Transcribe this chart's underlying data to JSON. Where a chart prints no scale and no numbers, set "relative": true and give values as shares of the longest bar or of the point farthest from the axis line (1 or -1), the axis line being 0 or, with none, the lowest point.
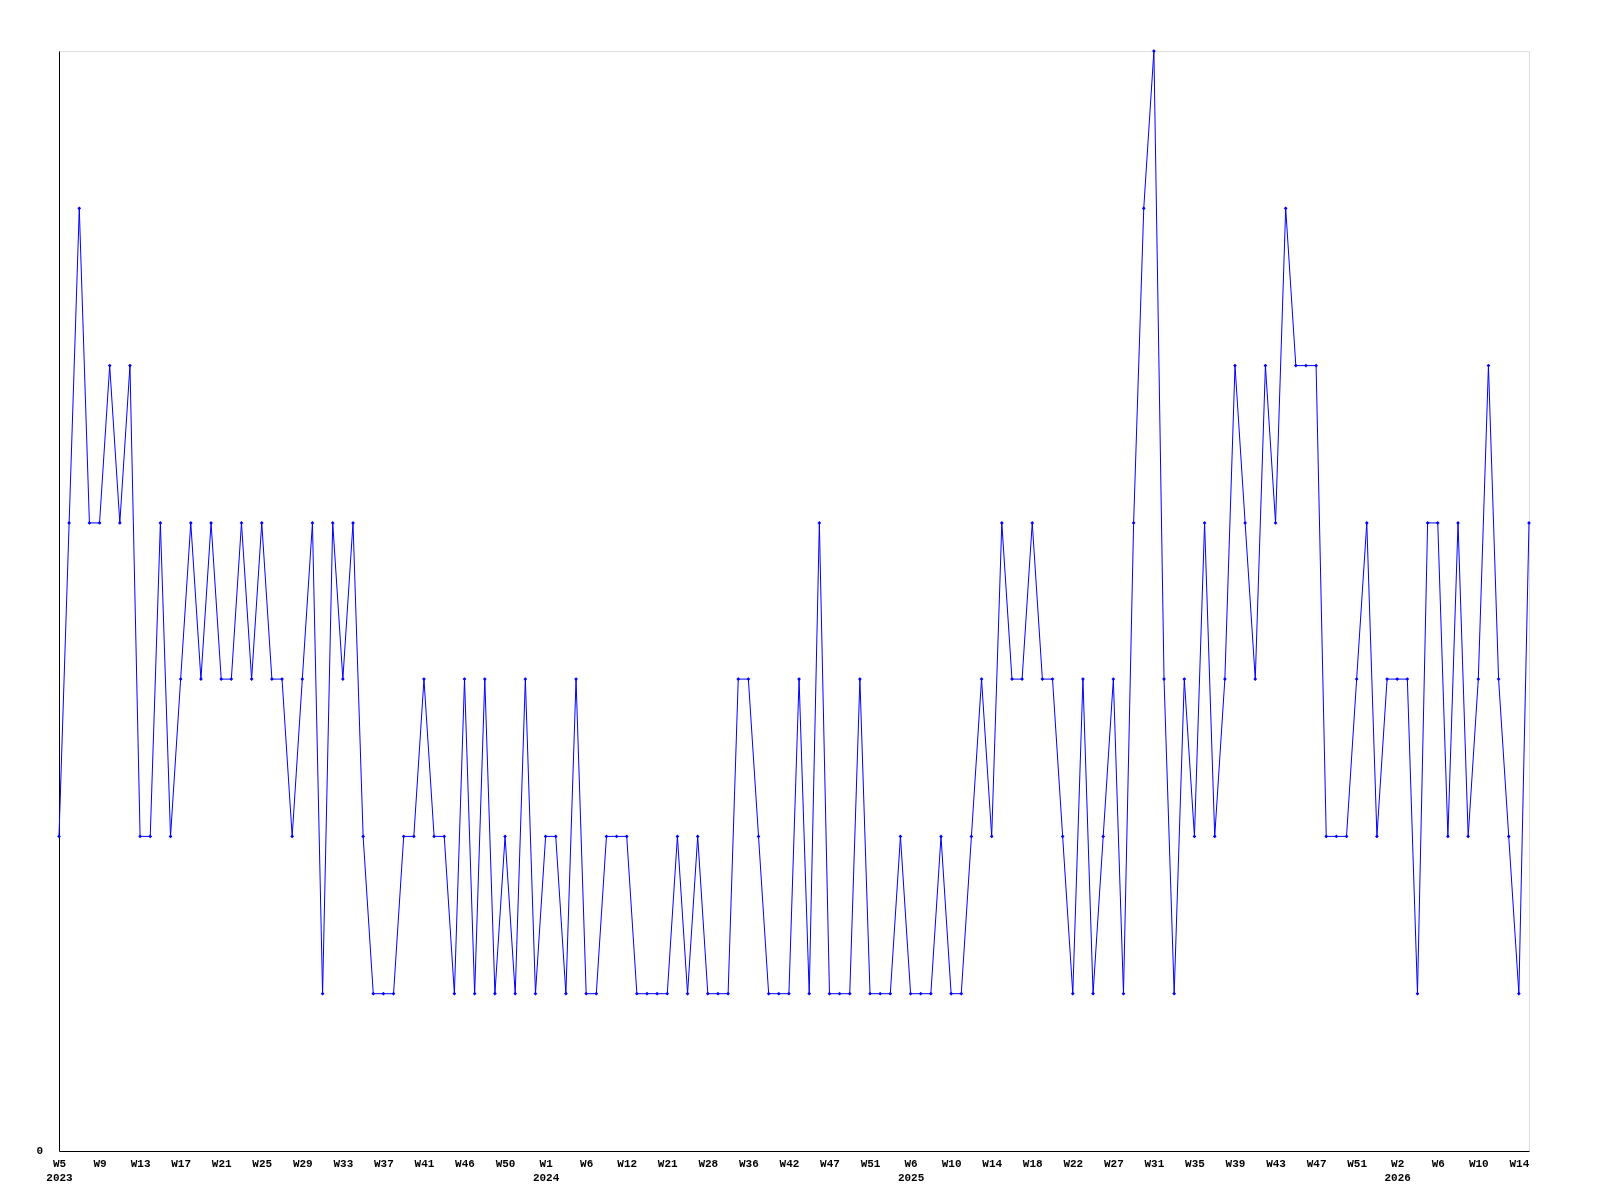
{
  "chart_data": {
    "type": "line",
    "relative": true,
    "marker": "diamond",
    "line_style": "solid",
    "grid": false,
    "categories": [
      "W5\n2023",
      null,
      null,
      null,
      "W9",
      null,
      null,
      null,
      "W13",
      null,
      null,
      null,
      "W17",
      null,
      null,
      null,
      "W21",
      null,
      null,
      null,
      "W25",
      null,
      null,
      null,
      "W29",
      null,
      null,
      null,
      "W33",
      null,
      null,
      null,
      "W37",
      null,
      null,
      null,
      "W41",
      null,
      null,
      null,
      "W46",
      null,
      null,
      null,
      "W50",
      null,
      null,
      null,
      "W1\n2024",
      null,
      null,
      null,
      "W6",
      null,
      null,
      null,
      "W12",
      null,
      null,
      null,
      "W21",
      null,
      null,
      null,
      "W28",
      null,
      null,
      null,
      "W36",
      null,
      null,
      null,
      "W42",
      null,
      null,
      null,
      "W47",
      null,
      null,
      null,
      "W51",
      null,
      null,
      null,
      "W6\n2025",
      null,
      null,
      null,
      "W10",
      null,
      null,
      null,
      "W14",
      null,
      null,
      null,
      "W18",
      null,
      null,
      null,
      "W22",
      null,
      null,
      null,
      "W27",
      null,
      null,
      null,
      "W31",
      null,
      null,
      null,
      "W35",
      null,
      null,
      null,
      "W39",
      null,
      null,
      null,
      "W43",
      null,
      null,
      null,
      "W47",
      null,
      null,
      null,
      "W51",
      null,
      null,
      null,
      "W2\n2026",
      null,
      null,
      null,
      "W6",
      null,
      null,
      null,
      "W10",
      null,
      null,
      null,
      "W14",
      null
    ],
    "series": [
      {
        "color": "#0000ff",
        "values": [
          0.286,
          0.571,
          0.857,
          0.571,
          0.571,
          0.714,
          0.571,
          0.714,
          0.286,
          0.286,
          0.571,
          0.286,
          0.429,
          0.571,
          0.429,
          0.571,
          0.429,
          0.429,
          0.571,
          0.429,
          0.571,
          0.429,
          0.429,
          0.286,
          0.429,
          0.571,
          0.143,
          0.571,
          0.429,
          0.571,
          0.286,
          0.143,
          0.143,
          0.143,
          0.286,
          0.286,
          0.429,
          0.286,
          0.286,
          0.143,
          0.429,
          0.143,
          0.429,
          0.143,
          0.286,
          0.143,
          0.429,
          0.143,
          0.286,
          0.286,
          0.143,
          0.429,
          0.143,
          0.143,
          0.286,
          0.286,
          0.286,
          0.143,
          0.143,
          0.143,
          0.143,
          0.286,
          0.143,
          0.286,
          0.143,
          0.143,
          0.143,
          0.429,
          0.429,
          0.286,
          0.143,
          0.143,
          0.143,
          0.429,
          0.143,
          0.571,
          0.143,
          0.143,
          0.143,
          0.429,
          0.143,
          0.143,
          0.143,
          0.286,
          0.143,
          0.143,
          0.143,
          0.286,
          0.143,
          0.143,
          0.286,
          0.429,
          0.286,
          0.571,
          0.429,
          0.429,
          0.571,
          0.429,
          0.429,
          0.286,
          0.143,
          0.429,
          0.143,
          0.286,
          0.429,
          0.143,
          0.571,
          0.857,
          1,
          0.429,
          0.143,
          0.429,
          0.286,
          0.571,
          0.286,
          0.429,
          0.714,
          0.571,
          0.429,
          0.714,
          0.571,
          0.857,
          0.714,
          0.714,
          0.714,
          0.286,
          0.286,
          0.286,
          0.429,
          0.571,
          0.286,
          0.429,
          0.429,
          0.429,
          0.143,
          0.571,
          0.571,
          0.286,
          0.571,
          0.286,
          0.429,
          0.714,
          0.429,
          0.286,
          0.143,
          0.571
        ]
      }
    ],
    "annotations": [
      "0"
    ]
  }
}
